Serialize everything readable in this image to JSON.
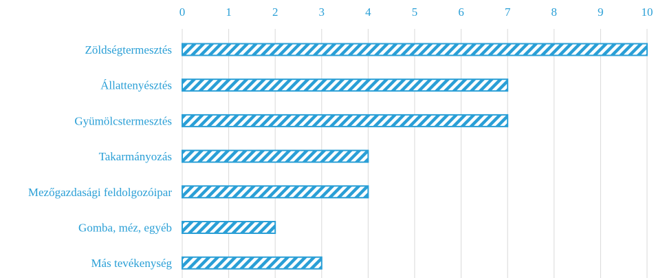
{
  "chart_data": {
    "type": "bar",
    "orientation": "horizontal",
    "categories": [
      "Zöldségtermesztés",
      "Állattenyésztés",
      "Gyümölcstermesztés",
      "Takarmányozás",
      "Mezőgazdasági feldolgozóipar",
      "Gomba, méz, egyéb",
      "Más tevékenység"
    ],
    "values": [
      10,
      7,
      7,
      4,
      4,
      2,
      3
    ],
    "xlim": [
      0,
      10
    ],
    "xticks": [
      "0",
      "1",
      "2",
      "3",
      "4",
      "5",
      "6",
      "7",
      "8",
      "9",
      "10"
    ],
    "x_axis_position": "top",
    "grid": true,
    "bar_fill": "diagonal-hatch",
    "colors": {
      "bar": "#2a9fd6",
      "text": "#2a9fd6",
      "grid": "#d8d8d8"
    }
  }
}
